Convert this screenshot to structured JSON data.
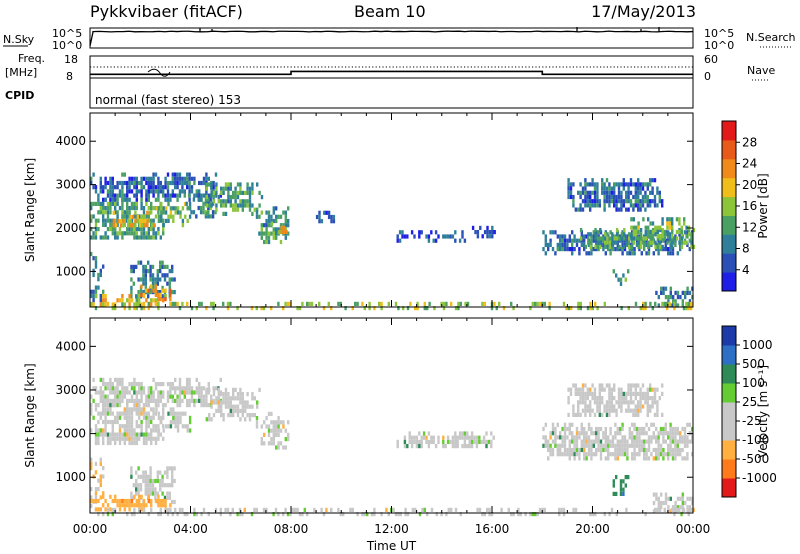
{
  "header": {
    "title": "Pykkvibaer (fitACF)",
    "beam": "Beam 10",
    "date": "17/May/2013"
  },
  "info_panels": {
    "nsky_label": "N.Sky",
    "nsky_ticks": [
      "10^5",
      "10^0"
    ],
    "nsearch_label": "N.Search",
    "nsearch_ticks": [
      "10^5",
      "10^0"
    ],
    "freq_label_1": "Freq.",
    "freq_label_2": "[MHz]",
    "freq_ticks": [
      "18",
      "8"
    ],
    "nave_label": "Nave",
    "nave_ticks": [
      "60",
      "0"
    ],
    "cpid_label": "CPID",
    "cpid_text": "normal (fast stereo) 153"
  },
  "colors": {
    "power": [
      "#1e1ee6",
      "#2a4fb6",
      "#2f7f9a",
      "#4a9f63",
      "#8cc43a",
      "#f0be1a",
      "#f08a1a",
      "#e85a1a",
      "#e31a1a"
    ],
    "velocity": [
      "#e31a1a",
      "#ff7a1a",
      "#ffb040",
      "#c8c8c8",
      "#c8c8c8",
      "#66cc33",
      "#2e8b57",
      "#2d6fc4",
      "#1c3aa8"
    ]
  },
  "chart_data": [
    {
      "type": "heatmap",
      "quantity": "power",
      "xlabel": "",
      "ylabel": "Slant Range [km]",
      "colorbar_label": "Power [dB]",
      "colorbar_ticks": [
        "4",
        "8",
        "12",
        "16",
        "20",
        "24",
        "28"
      ],
      "yticks": [
        "1000",
        "2000",
        "3000",
        "4000"
      ],
      "xticks": [],
      "xlim": [
        0,
        24
      ],
      "ylim": [
        180,
        4650
      ],
      "bands": [
        {
          "t0": 0.0,
          "t1": 5.2,
          "r0": 2650,
          "r1": 3280,
          "v": 7
        },
        {
          "t0": 0.0,
          "t1": 2.9,
          "r0": 1750,
          "r1": 2700,
          "v": 12
        },
        {
          "t0": 0.9,
          "t1": 2.6,
          "r0": 2050,
          "r1": 2400,
          "v": 20
        },
        {
          "t0": 2.6,
          "t1": 4.0,
          "r0": 2100,
          "r1": 2600,
          "v": 13
        },
        {
          "t0": 3.8,
          "t1": 5.0,
          "r0": 2300,
          "r1": 2800,
          "v": 10
        },
        {
          "t0": 4.6,
          "t1": 6.8,
          "r0": 2350,
          "r1": 3050,
          "v": 12
        },
        {
          "t0": 6.6,
          "t1": 7.9,
          "r0": 1700,
          "r1": 2500,
          "v": 11
        },
        {
          "t0": 7.2,
          "t1": 7.9,
          "r0": 1900,
          "r1": 2150,
          "v": 19
        },
        {
          "t0": 0.0,
          "t1": 0.5,
          "r0": 300,
          "r1": 1450,
          "v": 9
        },
        {
          "t0": 1.6,
          "t1": 3.4,
          "r0": 450,
          "r1": 1250,
          "v": 9
        },
        {
          "t0": 0.0,
          "t1": 3.0,
          "r0": 260,
          "r1": 480,
          "v": 18
        },
        {
          "t0": 2.0,
          "t1": 3.2,
          "r0": 300,
          "r1": 700,
          "v": 22
        },
        {
          "t0": 8.8,
          "t1": 9.8,
          "r0": 2150,
          "r1": 2400,
          "v": 5
        },
        {
          "t0": 12.2,
          "t1": 15.2,
          "r0": 1700,
          "r1": 1950,
          "v": 5
        },
        {
          "t0": 15.2,
          "t1": 16.1,
          "r0": 1800,
          "r1": 2050,
          "v": 5
        },
        {
          "t0": 18.0,
          "t1": 24.0,
          "r0": 1400,
          "r1": 1950,
          "v": 8
        },
        {
          "t0": 19.5,
          "t1": 24.0,
          "r0": 1600,
          "r1": 2000,
          "v": 12
        },
        {
          "t0": 21.5,
          "t1": 24.0,
          "r0": 1850,
          "r1": 2250,
          "v": 14
        },
        {
          "t0": 19.0,
          "t1": 22.8,
          "r0": 2450,
          "r1": 3150,
          "v": 7
        },
        {
          "t0": 20.8,
          "t1": 21.4,
          "r0": 650,
          "r1": 1050,
          "v": 12
        },
        {
          "t0": 22.4,
          "t1": 24.0,
          "r0": 250,
          "r1": 650,
          "v": 9
        },
        {
          "t0": 0.0,
          "t1": 24.0,
          "r0": 200,
          "r1": 300,
          "v": 16
        }
      ]
    },
    {
      "type": "heatmap",
      "quantity": "velocity",
      "xlabel": "Time UT",
      "ylabel": "Slant Range [km]",
      "colorbar_label": "Velocity [m s⁻¹]",
      "colorbar_ticks": [
        "-1000",
        "-500",
        "-100",
        "-25",
        "25",
        "100",
        "500",
        "1000"
      ],
      "yticks": [
        "1000",
        "2000",
        "3000",
        "4000"
      ],
      "xticks": [
        "00:00",
        "04:00",
        "08:00",
        "12:00",
        "16:00",
        "20:00",
        "00:00"
      ],
      "xlim": [
        0,
        24
      ],
      "ylim": [
        180,
        4650
      ],
      "bands": [
        {
          "t0": 0.0,
          "t1": 5.2,
          "r0": 2650,
          "r1": 3280,
          "v": 0
        },
        {
          "t0": 0.0,
          "t1": 2.9,
          "r0": 1750,
          "r1": 2700,
          "v": 0
        },
        {
          "t0": 2.6,
          "t1": 4.0,
          "r0": 2100,
          "r1": 2600,
          "v": 0
        },
        {
          "t0": 4.6,
          "t1": 6.8,
          "r0": 2350,
          "r1": 3050,
          "v": 0
        },
        {
          "t0": 6.6,
          "t1": 7.9,
          "r0": 1700,
          "r1": 2500,
          "v": 0
        },
        {
          "t0": 0.0,
          "t1": 0.5,
          "r0": 300,
          "r1": 1450,
          "v": -100
        },
        {
          "t0": 1.6,
          "t1": 3.4,
          "r0": 450,
          "r1": 1250,
          "v": 0
        },
        {
          "t0": 0.0,
          "t1": 3.2,
          "r0": 260,
          "r1": 600,
          "v": -300
        },
        {
          "t0": 12.2,
          "t1": 16.1,
          "r0": 1700,
          "r1": 2050,
          "v": 0
        },
        {
          "t0": 18.0,
          "t1": 24.0,
          "r0": 1400,
          "r1": 2250,
          "v": 0
        },
        {
          "t0": 19.0,
          "t1": 22.8,
          "r0": 2450,
          "r1": 3150,
          "v": -60
        },
        {
          "t0": 20.8,
          "t1": 21.4,
          "r0": 650,
          "r1": 1050,
          "v": 300
        },
        {
          "t0": 22.4,
          "t1": 24.0,
          "r0": 250,
          "r1": 650,
          "v": 0
        },
        {
          "t0": 0.0,
          "t1": 24.0,
          "r0": 200,
          "r1": 300,
          "v": 0
        }
      ]
    },
    {
      "type": "line",
      "quantity": "frequency",
      "xlim": [
        0,
        24
      ],
      "ylim": [
        8,
        18
      ],
      "x": [
        0.0,
        8.0,
        8.0,
        18.0,
        18.0,
        24.0
      ],
      "y": [
        9.7,
        9.7,
        11.0,
        11.0,
        9.7,
        9.7
      ]
    }
  ]
}
